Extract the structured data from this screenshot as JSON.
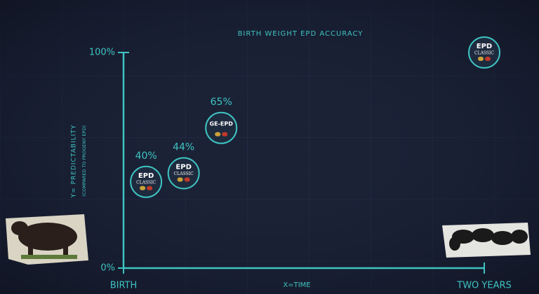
{
  "chart_data": {
    "type": "scatter",
    "title": "BIRTH WEIGHT EPD ACCURACY",
    "y_label": "Y= PREDICTABILITY",
    "y_sublabel": "(COMPARED TO PROGENY EPD)",
    "x_label": "X=TIME",
    "x": [
      1.5,
      4,
      6.5,
      24
    ],
    "values": [
      40,
      44,
      65,
      100
    ],
    "value_labels": [
      "40%",
      "44%",
      "65%",
      null
    ],
    "badge_titles": [
      "EPD",
      "EPD",
      "GE-EPD",
      "EPD"
    ],
    "badge_subtitles": [
      "CLASSIC",
      "CLASSIC",
      null,
      "CLASSIC"
    ],
    "color": "#3ec3c1",
    "xlim": [
      0,
      24
    ],
    "xticks": [
      {
        "value": 0,
        "label": "BIRTH"
      },
      {
        "value": 24,
        "label": "TWO YEARS"
      }
    ],
    "ylim": [
      0,
      100
    ],
    "yticks": [
      {
        "value": 0,
        "label": "0%"
      },
      {
        "value": 100,
        "label": "100%"
      }
    ]
  }
}
